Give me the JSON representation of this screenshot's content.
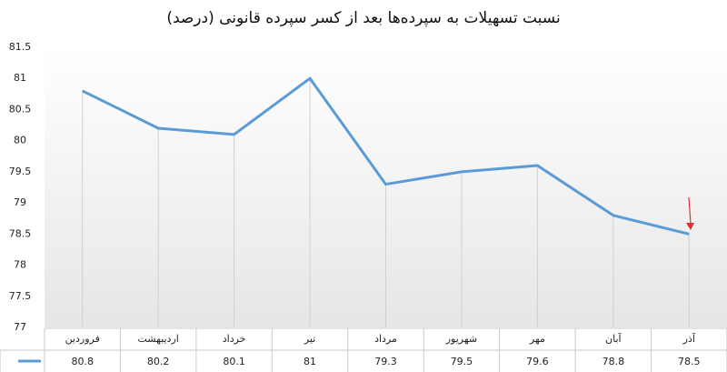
{
  "chart_data": {
    "type": "line",
    "title": "نسبت تسهیلات به سپرده‌ها بعد از کسر سپرده قانونی (درصد)",
    "categories": [
      "فروردین",
      "اردیبهشت",
      "خرداد",
      "تیر",
      "مرداد",
      "شهریور",
      "مهر",
      "آبان",
      "آذر"
    ],
    "values": [
      80.8,
      80.2,
      80.1,
      81,
      79.3,
      79.5,
      79.6,
      78.8,
      78.5
    ],
    "color": "#5b9bd5",
    "ylim": [
      77,
      81.5
    ],
    "yticks": [
      77,
      77.5,
      78,
      78.5,
      79,
      79.5,
      80,
      80.5,
      81,
      81.5
    ],
    "drop_lines": true,
    "data_table": true
  }
}
